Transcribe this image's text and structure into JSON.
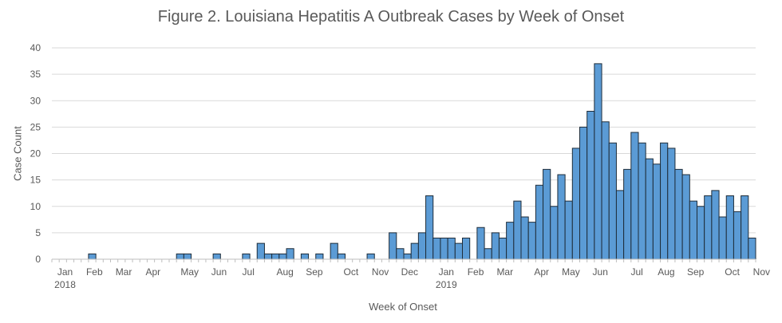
{
  "chart_data": {
    "type": "bar",
    "title": "Figure 2. Louisiana Hepatitis A Outbreak Cases by Week of Onset",
    "xlabel": "Week of Onset",
    "ylabel": "Case Count",
    "ylim": [
      0,
      40
    ],
    "yticks": [
      0,
      5,
      10,
      15,
      20,
      25,
      30,
      35,
      40
    ],
    "grid": true,
    "bar_color": "#5B9BD5",
    "bar_edge_color": "#1F2D3A",
    "categories": [
      "2017-12-31",
      "2018-01-07",
      "2018-01-14",
      "2018-01-21",
      "2018-01-28",
      "2018-02-04",
      "2018-02-11",
      "2018-02-18",
      "2018-02-25",
      "2018-03-04",
      "2018-03-11",
      "2018-03-18",
      "2018-03-25",
      "2018-04-01",
      "2018-04-08",
      "2018-04-15",
      "2018-04-22",
      "2018-04-29",
      "2018-05-06",
      "2018-05-13",
      "2018-05-20",
      "2018-05-27",
      "2018-06-03",
      "2018-06-10",
      "2018-06-17",
      "2018-06-24",
      "2018-07-01",
      "2018-07-08",
      "2018-07-15",
      "2018-07-22",
      "2018-07-29",
      "2018-08-05",
      "2018-08-12",
      "2018-08-19",
      "2018-08-26",
      "2018-09-02",
      "2018-09-09",
      "2018-09-16",
      "2018-09-23",
      "2018-09-30",
      "2018-10-07",
      "2018-10-14",
      "2018-10-21",
      "2018-10-28",
      "2018-11-04",
      "2018-11-11",
      "2018-11-18",
      "2018-11-25",
      "2018-12-02",
      "2018-12-09",
      "2018-12-16",
      "2018-12-23",
      "2018-12-30",
      "2019-01-06",
      "2019-01-13",
      "2019-01-20",
      "2019-01-27",
      "2019-02-03",
      "2019-02-10",
      "2019-02-17",
      "2019-02-24",
      "2019-03-03",
      "2019-03-10",
      "2019-03-17",
      "2019-03-24",
      "2019-03-31",
      "2019-04-07",
      "2019-04-14",
      "2019-04-21",
      "2019-04-28",
      "2019-05-05",
      "2019-05-12",
      "2019-05-19",
      "2019-05-26",
      "2019-06-02",
      "2019-06-09",
      "2019-06-16",
      "2019-06-23",
      "2019-06-30",
      "2019-07-07",
      "2019-07-14",
      "2019-07-21",
      "2019-07-28",
      "2019-08-04",
      "2019-08-11",
      "2019-08-18",
      "2019-08-25",
      "2019-09-01",
      "2019-09-08",
      "2019-09-15",
      "2019-09-22",
      "2019-09-29",
      "2019-10-06",
      "2019-10-13",
      "2019-10-20",
      "2019-10-27"
    ],
    "values": [
      0,
      0,
      0,
      0,
      0,
      1,
      0,
      0,
      0,
      0,
      0,
      0,
      0,
      0,
      0,
      0,
      0,
      1,
      1,
      0,
      0,
      0,
      1,
      0,
      0,
      0,
      1,
      0,
      3,
      1,
      1,
      1,
      2,
      0,
      1,
      0,
      1,
      0,
      3,
      1,
      0,
      0,
      0,
      1,
      0,
      0,
      5,
      2,
      1,
      3,
      5,
      12,
      4,
      4,
      4,
      3,
      4,
      0,
      6,
      2,
      5,
      4,
      7,
      11,
      8,
      7,
      14,
      17,
      10,
      16,
      11,
      21,
      25,
      28,
      37,
      26,
      22,
      13,
      17,
      24,
      22,
      19,
      18,
      22,
      21,
      17,
      16,
      11,
      10,
      12,
      13,
      8,
      12,
      9,
      12,
      4
    ],
    "xtick_labels": [
      {
        "label": "Jan",
        "month": "2018-01",
        "year": "2018"
      },
      {
        "label": "Feb",
        "month": "2018-02"
      },
      {
        "label": "Mar",
        "month": "2018-03"
      },
      {
        "label": "Apr",
        "month": "2018-04"
      },
      {
        "label": "May",
        "month": "2018-05"
      },
      {
        "label": "Jun",
        "month": "2018-06"
      },
      {
        "label": "Jul",
        "month": "2018-07"
      },
      {
        "label": "Aug",
        "month": "2018-08"
      },
      {
        "label": "Sep",
        "month": "2018-09"
      },
      {
        "label": "Oct",
        "month": "2018-10"
      },
      {
        "label": "Nov",
        "month": "2018-11"
      },
      {
        "label": "Dec",
        "month": "2018-12"
      },
      {
        "label": "Jan",
        "month": "2019-01",
        "year": "2019"
      },
      {
        "label": "Feb",
        "month": "2019-02"
      },
      {
        "label": "Mar",
        "month": "2019-03"
      },
      {
        "label": "Apr",
        "month": "2019-04"
      },
      {
        "label": "May",
        "month": "2019-05"
      },
      {
        "label": "Jun",
        "month": "2019-06"
      },
      {
        "label": "Jul",
        "month": "2019-07"
      },
      {
        "label": "Aug",
        "month": "2019-08"
      },
      {
        "label": "Sep",
        "month": "2019-09"
      },
      {
        "label": "Oct",
        "month": "2019-10"
      },
      {
        "label": "Nov",
        "month": "2019-11"
      }
    ]
  }
}
